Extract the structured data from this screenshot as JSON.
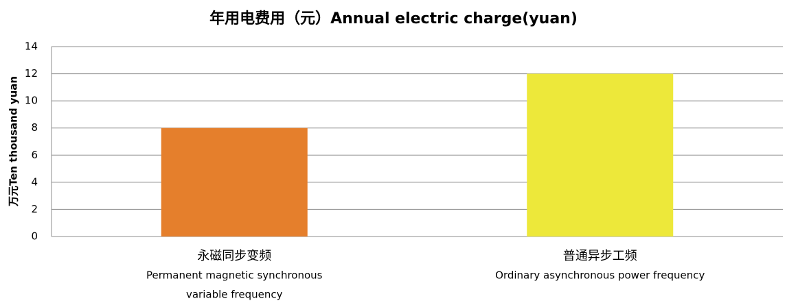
{
  "chart_data": {
    "type": "bar",
    "title": "年用电费用（元）Annual electric charge(yuan)",
    "y_label": "万元Ten thousand yuan",
    "categories": [
      [
        "永磁同步变频",
        "Permanent magnetic synchronous",
        "variable frequency"
      ],
      [
        "普通异步工频",
        "Ordinary asynchronous power frequency"
      ]
    ],
    "values": [
      8,
      12
    ],
    "colors": [
      "#e57f2c",
      "#ede83a"
    ],
    "ylim": [
      0,
      14
    ],
    "yticks": [
      0,
      2,
      4,
      6,
      8,
      10,
      12,
      14
    ],
    "grid": true
  }
}
